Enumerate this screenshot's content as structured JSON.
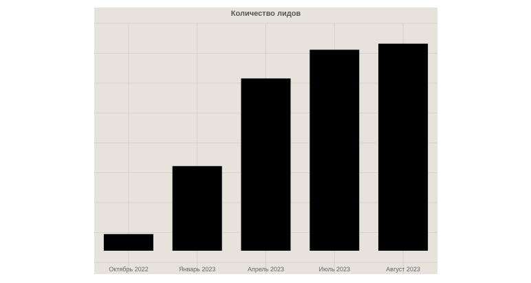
{
  "chart_data": {
    "type": "bar",
    "title": "Количество лидов",
    "xlabel": "",
    "ylabel": "",
    "categories": [
      "Октябрь 2022",
      "Январь 2023",
      "Апрель 2023",
      "Июль 2023",
      "Август 2023"
    ],
    "values": [
      5.5,
      28,
      57,
      66.5,
      68.5
    ],
    "ylim": [
      0,
      75
    ],
    "grid": true,
    "legend": "none",
    "colors": {
      "bar": "#000000",
      "background": "#e7e3dc",
      "grid": "#cfcac3"
    }
  }
}
